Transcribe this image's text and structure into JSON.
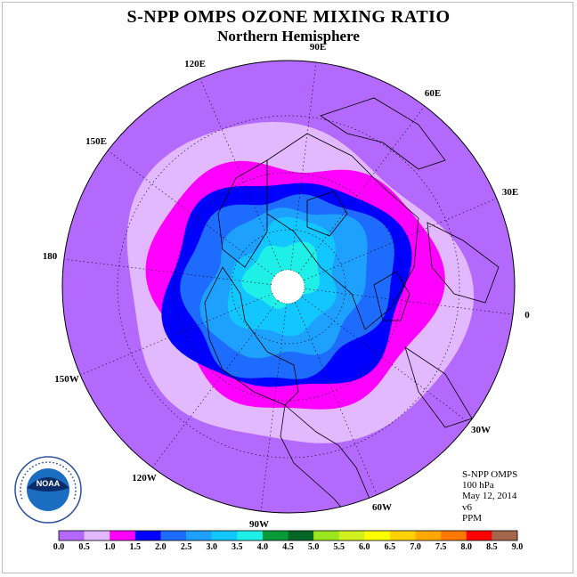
{
  "title": "S-NPP OMPS OZONE MIXING RATIO",
  "subtitle": "Northern Hemisphere",
  "longitude_labels": [
    "90E",
    "60E",
    "30E",
    "0",
    "30W",
    "60W",
    "90W",
    "120W",
    "150W",
    "180",
    "150E",
    "120E"
  ],
  "info": {
    "instrument": "S-NPP OMPS",
    "level": "100 hPa",
    "date": "May 12, 2014",
    "version": "v6",
    "units": "PPM"
  },
  "logo": {
    "text": "NOAA",
    "ring_text": "NATIONAL OCEANIC AND ATMOSPHERIC ADMINISTRATION · U.S. DEPARTMENT OF COMMERCE"
  },
  "colorbar": {
    "ticks": [
      "0.0",
      "0.5",
      "1.0",
      "1.5",
      "2.0",
      "2.5",
      "3.0",
      "3.5",
      "4.0",
      "4.5",
      "5.0",
      "5.5",
      "6.0",
      "6.5",
      "7.0",
      "7.5",
      "8.0",
      "8.5",
      "9.0"
    ],
    "colors": [
      "#b469fd",
      "#e2b8fe",
      "#ff00ff",
      "#0000ff",
      "#1d6bff",
      "#1ea0ff",
      "#12c6ff",
      "#1ef0e8",
      "#099a38",
      "#066626",
      "#9be61e",
      "#d2f01e",
      "#ffff00",
      "#ffd200",
      "#ffa800",
      "#ff7800",
      "#ff0000",
      "#a5674a"
    ]
  },
  "ozone_field_ppm": {
    "outer_hemisphere": "0.0-0.5",
    "mid_latitudes": "0.5-1.0",
    "polar_vortex_edge": "1.0-2.0",
    "polar_interior": "2.0-4.0",
    "pole": "no data"
  }
}
